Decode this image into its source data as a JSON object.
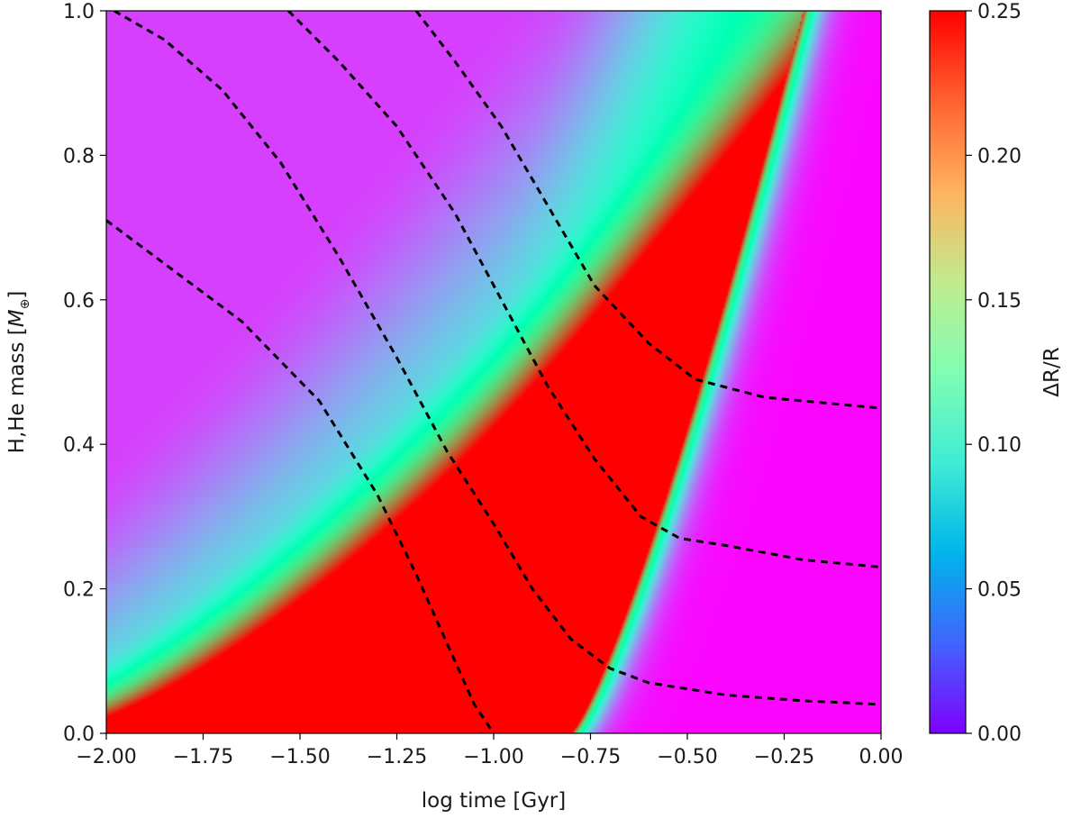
{
  "chart_data": {
    "type": "heatmap",
    "xlabel": "log time [Gyr]",
    "ylabel_main": "H,He mass [",
    "ylabel_symbol": "M",
    "ylabel_subscript": "⊕",
    "ylabel_close": "]",
    "colorbar_label": "ΔR/R",
    "colormap": "rainbow",
    "xlim": [
      -2.0,
      0.0
    ],
    "ylim": [
      0.0,
      1.0
    ],
    "clim": [
      0.0,
      0.25
    ],
    "x_ticks": [
      -2.0,
      -1.75,
      -1.5,
      -1.25,
      -1.0,
      -0.75,
      -0.5,
      -0.25,
      0.0
    ],
    "x_tick_labels": [
      "−2.00",
      "−1.75",
      "−1.50",
      "−1.25",
      "−1.00",
      "−0.75",
      "−0.50",
      "−0.25",
      "0.00"
    ],
    "y_ticks": [
      0.0,
      0.2,
      0.4,
      0.6,
      0.8,
      1.0
    ],
    "y_tick_labels": [
      "0.0",
      "0.2",
      "0.4",
      "0.6",
      "0.8",
      "1.0"
    ],
    "colorbar_ticks": [
      0.0,
      0.05,
      0.1,
      0.15,
      0.2,
      0.25
    ],
    "colorbar_tick_labels": [
      "0.00",
      "0.05",
      "0.10",
      "0.15",
      "0.20",
      "0.25"
    ],
    "contours": [
      {
        "style": "dashed",
        "color": "#000000",
        "points": [
          [
            -2.0,
            0.71
          ],
          [
            -1.85,
            0.65
          ],
          [
            -1.65,
            0.57
          ],
          [
            -1.45,
            0.46
          ],
          [
            -1.3,
            0.33
          ],
          [
            -1.2,
            0.22
          ],
          [
            -1.1,
            0.1
          ],
          [
            -1.05,
            0.04
          ],
          [
            -1.0,
            0.0
          ]
        ]
      },
      {
        "style": "dashed",
        "color": "#000000",
        "points": [
          [
            -1.98,
            1.0
          ],
          [
            -1.85,
            0.96
          ],
          [
            -1.7,
            0.89
          ],
          [
            -1.55,
            0.79
          ],
          [
            -1.4,
            0.66
          ],
          [
            -1.25,
            0.52
          ],
          [
            -1.12,
            0.39
          ],
          [
            -1.0,
            0.29
          ],
          [
            -0.9,
            0.2
          ],
          [
            -0.8,
            0.13
          ],
          [
            -0.7,
            0.09
          ],
          [
            -0.6,
            0.07
          ],
          [
            -0.4,
            0.053
          ],
          [
            -0.2,
            0.045
          ],
          [
            0.0,
            0.04
          ]
        ]
      },
      {
        "style": "dashed",
        "color": "#000000",
        "points": [
          [
            -1.53,
            1.0
          ],
          [
            -1.4,
            0.93
          ],
          [
            -1.25,
            0.84
          ],
          [
            -1.1,
            0.72
          ],
          [
            -0.98,
            0.6
          ],
          [
            -0.86,
            0.48
          ],
          [
            -0.74,
            0.38
          ],
          [
            -0.62,
            0.3
          ],
          [
            -0.52,
            0.27
          ],
          [
            -0.4,
            0.26
          ],
          [
            -0.2,
            0.24
          ],
          [
            0.0,
            0.23
          ]
        ]
      },
      {
        "style": "dashed",
        "color": "#000000",
        "points": [
          [
            -1.2,
            1.0
          ],
          [
            -1.1,
            0.93
          ],
          [
            -0.98,
            0.84
          ],
          [
            -0.86,
            0.73
          ],
          [
            -0.74,
            0.62
          ],
          [
            -0.6,
            0.54
          ],
          [
            -0.48,
            0.49
          ],
          [
            -0.3,
            0.465
          ],
          [
            -0.1,
            0.455
          ],
          [
            0.0,
            0.45
          ]
        ]
      }
    ]
  }
}
